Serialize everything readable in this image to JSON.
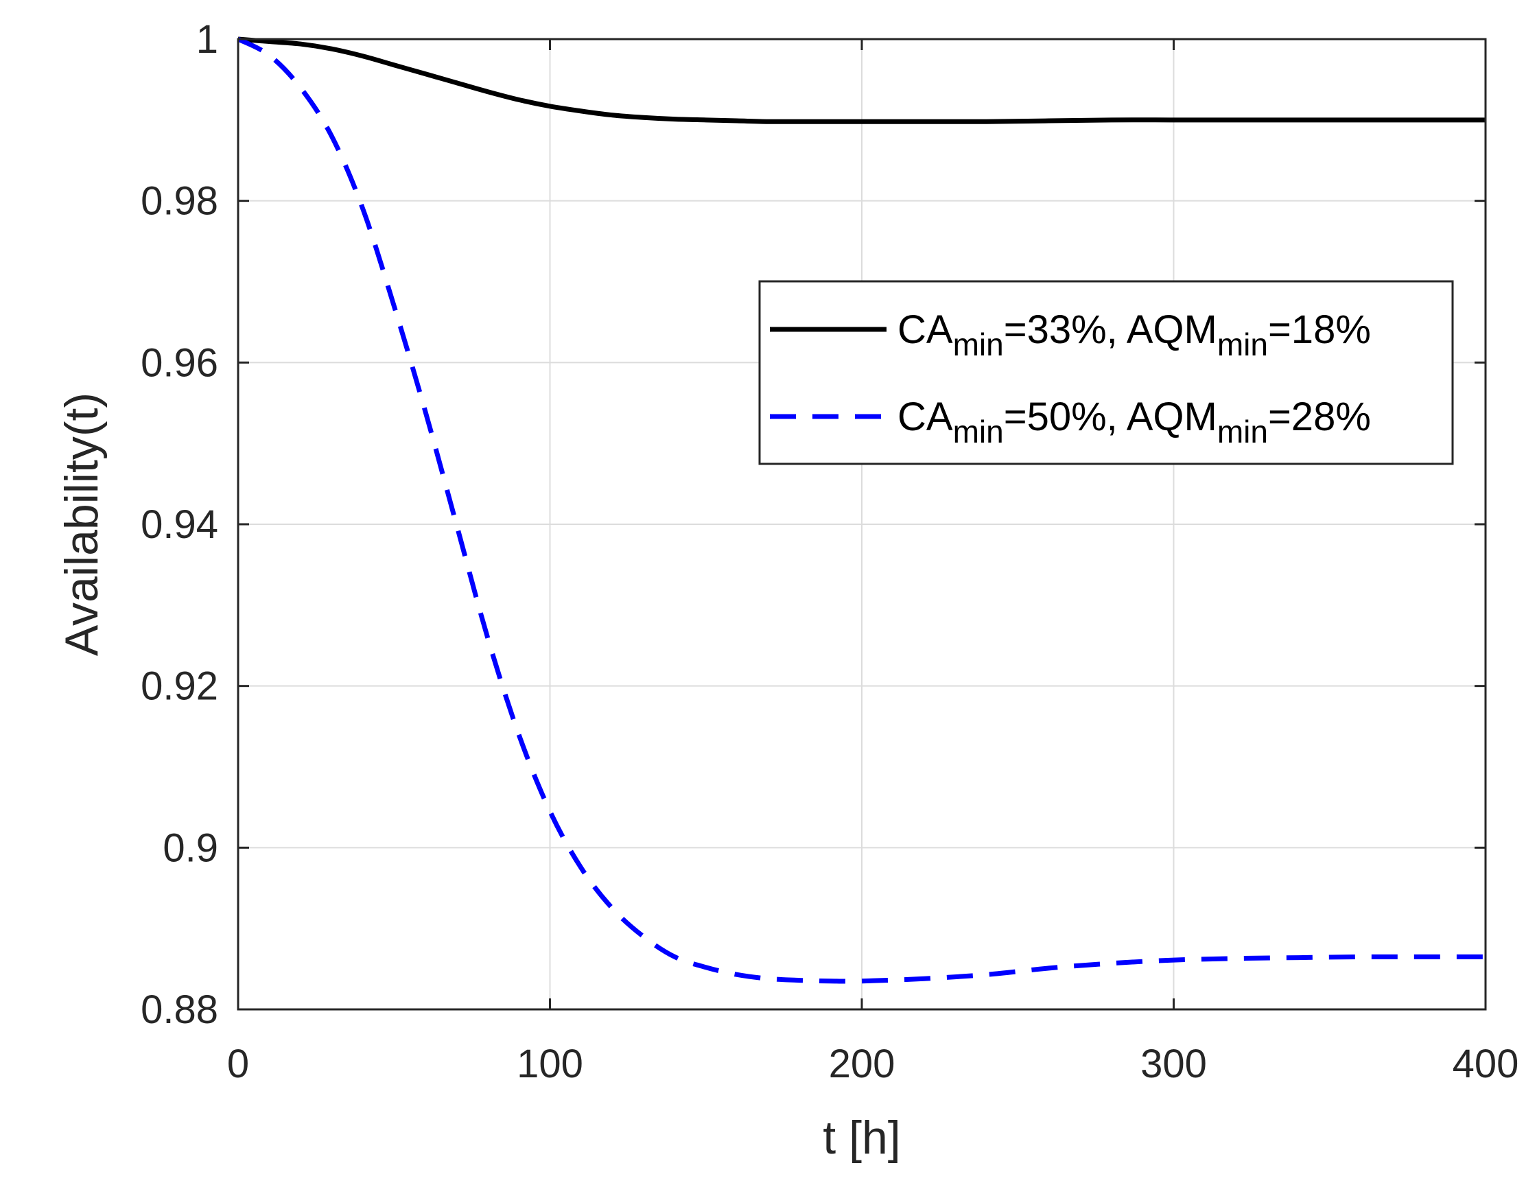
{
  "chart_data": {
    "type": "line",
    "xlabel": "t [h]",
    "ylabel": "Availability(t)",
    "xlim": [
      0,
      400
    ],
    "ylim": [
      0.88,
      1.0
    ],
    "xticks": [
      0,
      100,
      200,
      300,
      400
    ],
    "xtick_labels": [
      "0",
      "100",
      "200",
      "300",
      "400"
    ],
    "yticks": [
      0.88,
      0.9,
      0.92,
      0.94,
      0.96,
      0.98,
      1.0
    ],
    "ytick_labels": [
      "0.88",
      "0.9",
      "0.92",
      "0.94",
      "0.96",
      "0.98",
      "1"
    ],
    "grid": true,
    "legend_position": "upper-right",
    "x": [
      0,
      10,
      20,
      30,
      40,
      50,
      60,
      70,
      80,
      90,
      100,
      110,
      120,
      130,
      140,
      150,
      160,
      170,
      180,
      190,
      200,
      220,
      240,
      260,
      280,
      300,
      320,
      340,
      360,
      380,
      400
    ],
    "series": [
      {
        "legend": {
          "a": "CA",
          "a_sub": "min",
          "b": "=33%, AQM",
          "b_sub": "min",
          "c": "=18%"
        },
        "color": "#000000",
        "dash": "solid",
        "values": [
          1.0,
          0.9997,
          0.9994,
          0.9988,
          0.9979,
          0.9968,
          0.9957,
          0.9946,
          0.9935,
          0.9925,
          0.9917,
          0.9911,
          0.9906,
          0.9903,
          0.9901,
          0.99,
          0.9899,
          0.9898,
          0.9898,
          0.9898,
          0.9898,
          0.9898,
          0.9898,
          0.9899,
          0.99,
          0.99,
          0.99,
          0.99,
          0.99,
          0.99,
          0.99
        ]
      },
      {
        "legend": {
          "a": "CA",
          "a_sub": "min",
          "b": "=50%, AQM",
          "b_sub": "min",
          "c": "=28%"
        },
        "color": "#0000ff",
        "dash": "dashed",
        "values": [
          1.0,
          0.998,
          0.994,
          0.988,
          0.979,
          0.967,
          0.954,
          0.94,
          0.926,
          0.914,
          0.9045,
          0.8975,
          0.8925,
          0.889,
          0.8865,
          0.8852,
          0.8843,
          0.8838,
          0.8836,
          0.8835,
          0.8835,
          0.8838,
          0.8843,
          0.8851,
          0.8857,
          0.8861,
          0.8863,
          0.8864,
          0.8865,
          0.8865,
          0.8865
        ]
      }
    ]
  }
}
